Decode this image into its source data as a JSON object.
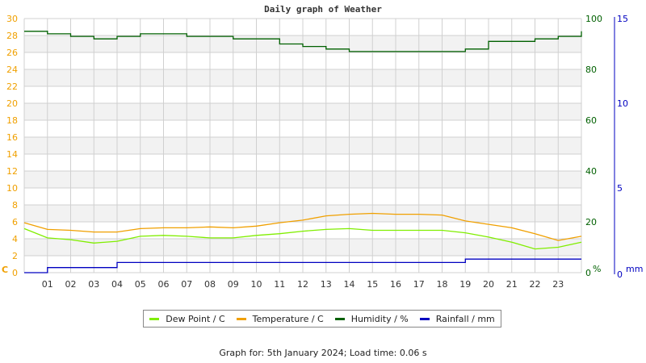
{
  "title": "Daily graph of Weather",
  "footer": "Graph for: 5th January 2024; Load time: 0.06 s",
  "colors": {
    "dew_point": "#80ee00",
    "temperature": "#f0a000",
    "humidity": "#006000",
    "rainfall": "#0000c0",
    "left_axis": "#f0a000",
    "humidity_axis": "#006000",
    "rain_axis": "#0000c0",
    "grid": "#d0d0d0",
    "band": "#f2f2f2"
  },
  "legend": [
    {
      "label": "Dew Point / C",
      "color": "#80ee00"
    },
    {
      "label": "Temperature / C",
      "color": "#f0a000"
    },
    {
      "label": "Humidity / %",
      "color": "#006000"
    },
    {
      "label": "Rainfall / mm",
      "color": "#0000c0"
    }
  ],
  "axes": {
    "left_unit": "C",
    "humidity_unit": "%",
    "rain_unit": "mm"
  },
  "chart_data": {
    "type": "line",
    "title": "Daily graph of Weather",
    "xlabel": "",
    "x_ticks": [
      "01",
      "02",
      "03",
      "04",
      "05",
      "06",
      "07",
      "08",
      "09",
      "10",
      "11",
      "12",
      "13",
      "14",
      "15",
      "16",
      "17",
      "18",
      "19",
      "20",
      "21",
      "22",
      "23"
    ],
    "x_range_hours": [
      0,
      24
    ],
    "y_left": {
      "label": "C",
      "range": [
        0,
        30
      ],
      "ticks": [
        0,
        2,
        4,
        6,
        8,
        10,
        12,
        14,
        16,
        18,
        20,
        22,
        24,
        26,
        28,
        30
      ]
    },
    "y_right_humidity": {
      "label": "%",
      "range": [
        0,
        100
      ],
      "ticks": [
        0,
        20,
        40,
        60,
        80,
        100
      ]
    },
    "y_right_rain": {
      "label": "mm",
      "range": [
        0,
        15
      ],
      "ticks": [
        0,
        5,
        10,
        15
      ]
    },
    "grid": true,
    "legend_position": "bottom",
    "x": [
      0,
      1,
      2,
      3,
      4,
      5,
      6,
      7,
      8,
      9,
      10,
      11,
      12,
      13,
      14,
      15,
      16,
      17,
      18,
      19,
      20,
      21,
      22,
      23,
      24
    ],
    "series": [
      {
        "name": "Dew Point / C",
        "axis": "left",
        "values": [
          5.2,
          4.1,
          3.9,
          3.5,
          3.7,
          4.3,
          4.4,
          4.3,
          4.1,
          4.1,
          4.4,
          4.6,
          4.9,
          5.1,
          5.2,
          5.0,
          5.0,
          5.0,
          5.0,
          4.7,
          4.2,
          3.6,
          2.8,
          3.0,
          3.6
        ]
      },
      {
        "name": "Temperature / C",
        "axis": "left",
        "values": [
          5.9,
          5.1,
          5.0,
          4.8,
          4.8,
          5.2,
          5.3,
          5.3,
          5.4,
          5.3,
          5.5,
          5.9,
          6.2,
          6.7,
          6.9,
          7.0,
          6.9,
          6.9,
          6.8,
          6.1,
          5.7,
          5.3,
          4.6,
          3.8,
          4.3
        ]
      },
      {
        "name": "Humidity / %",
        "axis": "humidity",
        "values": [
          95,
          94,
          93,
          92,
          93,
          94,
          94,
          93,
          93,
          92,
          92,
          90,
          89,
          88,
          87,
          87,
          87,
          87,
          87,
          88,
          91,
          91,
          92,
          93,
          95
        ]
      },
      {
        "name": "Rainfall / mm",
        "axis": "rain",
        "values": [
          0.0,
          0.3,
          0.3,
          0.3,
          0.6,
          0.6,
          0.6,
          0.6,
          0.6,
          0.6,
          0.6,
          0.6,
          0.6,
          0.6,
          0.6,
          0.6,
          0.6,
          0.6,
          0.6,
          0.8,
          0.8,
          0.8,
          0.8,
          0.8,
          0.8
        ]
      }
    ]
  }
}
